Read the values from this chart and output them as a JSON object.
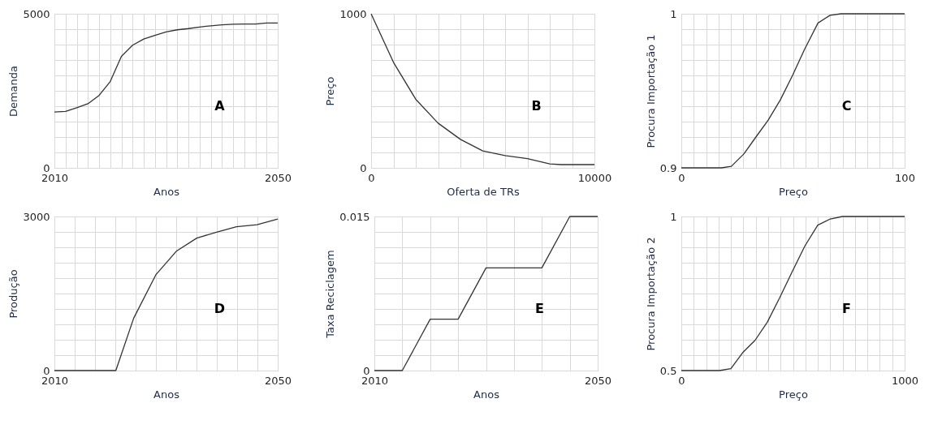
{
  "chart_data": [
    {
      "type": "line",
      "xlabel": "Anos",
      "ylabel": "Demanda",
      "annotations": [
        "A"
      ],
      "grid": true,
      "x": [
        2010,
        2012,
        2014,
        2016,
        2018,
        2020,
        2022,
        2024,
        2026,
        2028,
        2030,
        2032,
        2034,
        2036,
        2038,
        2040,
        2042,
        2044,
        2046,
        2048,
        2050
      ],
      "series": [
        {
          "color": "#333333",
          "values": [
            1810,
            1830,
            1950,
            2080,
            2350,
            2800,
            3620,
            3980,
            4180,
            4300,
            4410,
            4480,
            4520,
            4570,
            4610,
            4640,
            4660,
            4670,
            4670,
            4700,
            4700
          ]
        }
      ],
      "xlim": [
        2010,
        2050
      ],
      "ylim": [
        0,
        5000
      ],
      "xticks": [
        2010,
        {
          "value": 2012,
          "label": null
        },
        {
          "value": 2014,
          "label": null
        },
        {
          "value": 2016,
          "label": null
        },
        {
          "value": 2018,
          "label": null
        },
        {
          "value": 2020,
          "label": null
        },
        {
          "value": 2022,
          "label": null
        },
        {
          "value": 2024,
          "label": null
        },
        {
          "value": 2026,
          "label": null
        },
        {
          "value": 2028,
          "label": null
        },
        {
          "value": 2030,
          "label": null
        },
        {
          "value": 2032,
          "label": null
        },
        {
          "value": 2034,
          "label": null
        },
        {
          "value": 2036,
          "label": null
        },
        {
          "value": 2038,
          "label": null
        },
        {
          "value": 2040,
          "label": null
        },
        {
          "value": 2042,
          "label": null
        },
        {
          "value": 2044,
          "label": null
        },
        {
          "value": 2046,
          "label": null
        },
        {
          "value": 2048,
          "label": null
        },
        2050
      ],
      "yticks": [
        0,
        {
          "value": 500,
          "label": null
        },
        {
          "value": 1000,
          "label": null
        },
        {
          "value": 1500,
          "label": null
        },
        {
          "value": 2000,
          "label": null
        },
        {
          "value": 2500,
          "label": null
        },
        {
          "value": 3000,
          "label": null
        },
        {
          "value": 3500,
          "label": null
        },
        {
          "value": 4000,
          "label": null
        },
        {
          "value": 4500,
          "label": null
        },
        5000
      ]
    },
    {
      "type": "line",
      "xlabel": "Oferta de TRs",
      "ylabel": "Preço",
      "annotations": [
        "B"
      ],
      "grid": true,
      "x": [
        0,
        1000,
        2000,
        3000,
        4000,
        5000,
        6000,
        7000,
        8000,
        8500,
        10000
      ],
      "series": [
        {
          "color": "#333333",
          "values": [
            1000,
            685,
            445,
            290,
            185,
            110,
            80,
            60,
            26,
            21,
            21
          ]
        }
      ],
      "xlim": [
        0,
        10000
      ],
      "ylim": [
        0,
        1000
      ],
      "xticks": [
        0,
        {
          "value": 1000,
          "label": null
        },
        {
          "value": 2000,
          "label": null
        },
        {
          "value": 3000,
          "label": null
        },
        {
          "value": 4000,
          "label": null
        },
        {
          "value": 5000,
          "label": null
        },
        {
          "value": 6000,
          "label": null
        },
        {
          "value": 7000,
          "label": null
        },
        {
          "value": 8000,
          "label": null
        },
        {
          "value": 9000,
          "label": null
        },
        10000
      ],
      "yticks": [
        0,
        {
          "value": 100,
          "label": null
        },
        {
          "value": 200,
          "label": null
        },
        {
          "value": 300,
          "label": null
        },
        {
          "value": 400,
          "label": null
        },
        {
          "value": 500,
          "label": null
        },
        {
          "value": 600,
          "label": null
        },
        {
          "value": 700,
          "label": null
        },
        {
          "value": 800,
          "label": null
        },
        {
          "value": 900,
          "label": null
        },
        1000
      ]
    },
    {
      "type": "line",
      "xlabel": "Preço",
      "ylabel": "Procura Importação 1",
      "annotations": [
        "C"
      ],
      "grid": true,
      "x": [
        0,
        18,
        22.4,
        28,
        33.4,
        38.9,
        44.3,
        49.8,
        55.2,
        61.2,
        66.6,
        71.5,
        100
      ],
      "series": [
        {
          "color": "#333333",
          "values": [
            0.9,
            0.9,
            0.901,
            0.909,
            0.92,
            0.931,
            0.944,
            0.96,
            0.977,
            0.994,
            0.999,
            1,
            1
          ]
        }
      ],
      "xlim": [
        0,
        100
      ],
      "ylim": [
        0.9,
        1
      ],
      "xticks": [
        0,
        {
          "value": 5.6,
          "label": null
        },
        {
          "value": 11.1,
          "label": null
        },
        {
          "value": 16.7,
          "label": null
        },
        {
          "value": 22.2,
          "label": null
        },
        {
          "value": 27.8,
          "label": null
        },
        {
          "value": 33.3,
          "label": null
        },
        {
          "value": 38.9,
          "label": null
        },
        {
          "value": 44.4,
          "label": null
        },
        {
          "value": 50,
          "label": null
        },
        {
          "value": 55.6,
          "label": null
        },
        {
          "value": 61.1,
          "label": null
        },
        {
          "value": 66.7,
          "label": null
        },
        {
          "value": 72.2,
          "label": null
        },
        {
          "value": 77.8,
          "label": null
        },
        {
          "value": 83.3,
          "label": null
        },
        {
          "value": 88.9,
          "label": null
        },
        {
          "value": 94.4,
          "label": null
        },
        100
      ],
      "yticks": [
        0.9,
        {
          "value": 0.91,
          "label": null
        },
        {
          "value": 0.92,
          "label": null
        },
        {
          "value": 0.93,
          "label": null
        },
        {
          "value": 0.94,
          "label": null
        },
        {
          "value": 0.95,
          "label": null
        },
        {
          "value": 0.96,
          "label": null
        },
        {
          "value": 0.97,
          "label": null
        },
        {
          "value": 0.98,
          "label": null
        },
        {
          "value": 0.99,
          "label": null
        },
        1
      ]
    },
    {
      "type": "line",
      "xlabel": "Anos",
      "ylabel": "Produção",
      "annotations": [
        "D"
      ],
      "grid": true,
      "x": [
        2010,
        2021,
        2024.2,
        2028.2,
        2031.9,
        2035.5,
        2038.9,
        2042.6,
        2046.3,
        2050
      ],
      "series": [
        {
          "color": "#333333",
          "values": [
            0,
            0,
            1020,
            1870,
            2330,
            2580,
            2690,
            2800,
            2840,
            2950
          ]
        }
      ],
      "xlim": [
        2010,
        2050
      ],
      "ylim": [
        0,
        3000
      ],
      "xticks": [
        2010,
        {
          "value": 2013.6,
          "label": null
        },
        {
          "value": 2017.3,
          "label": null
        },
        {
          "value": 2020.9,
          "label": null
        },
        {
          "value": 2024.5,
          "label": null
        },
        {
          "value": 2028.2,
          "label": null
        },
        {
          "value": 2031.8,
          "label": null
        },
        {
          "value": 2035.5,
          "label": null
        },
        {
          "value": 2039.1,
          "label": null
        },
        {
          "value": 2042.7,
          "label": null
        },
        {
          "value": 2046.4,
          "label": null
        },
        2050
      ],
      "yticks": [
        0,
        {
          "value": 300,
          "label": null
        },
        {
          "value": 600,
          "label": null
        },
        {
          "value": 900,
          "label": null
        },
        {
          "value": 1200,
          "label": null
        },
        {
          "value": 1500,
          "label": null
        },
        {
          "value": 1800,
          "label": null
        },
        {
          "value": 2100,
          "label": null
        },
        {
          "value": 2400,
          "label": null
        },
        {
          "value": 2700,
          "label": null
        },
        3000
      ]
    },
    {
      "type": "line",
      "xlabel": "Anos",
      "ylabel": "Taxa Reciclagem",
      "annotations": [
        "E"
      ],
      "grid": true,
      "x": [
        2010,
        2015,
        2020,
        2025,
        2030,
        2040,
        2045,
        2050
      ],
      "series": [
        {
          "color": "#333333",
          "values": [
            0,
            0,
            0.005,
            0.005,
            0.01,
            0.01,
            0.015,
            0.015
          ]
        }
      ],
      "xlim": [
        2010,
        2050
      ],
      "ylim": [
        0,
        0.015
      ],
      "xticks": [
        2010,
        {
          "value": 2015,
          "label": null
        },
        {
          "value": 2020,
          "label": null
        },
        {
          "value": 2025,
          "label": null
        },
        {
          "value": 2030,
          "label": null
        },
        {
          "value": 2035,
          "label": null
        },
        {
          "value": 2040,
          "label": null
        },
        {
          "value": 2045,
          "label": null
        },
        2050
      ],
      "yticks": [
        0,
        {
          "value": 0.0015,
          "label": null
        },
        {
          "value": 0.003,
          "label": null
        },
        {
          "value": 0.0045,
          "label": null
        },
        {
          "value": 0.006,
          "label": null
        },
        {
          "value": 0.0075,
          "label": null
        },
        {
          "value": 0.009,
          "label": null
        },
        {
          "value": 0.0105,
          "label": null
        },
        {
          "value": 0.012,
          "label": null
        },
        {
          "value": 0.0135,
          "label": null
        },
        0.015
      ]
    },
    {
      "type": "line",
      "xlabel": "Preço",
      "ylabel": "Procura Importação 2",
      "annotations": [
        "F"
      ],
      "grid": true,
      "x": [
        0,
        171,
        222,
        277,
        330,
        385,
        439,
        494,
        553,
        611,
        667,
        721,
        1000
      ],
      "series": [
        {
          "color": "#333333",
          "values": [
            0.5,
            0.5,
            0.506,
            0.56,
            0.598,
            0.657,
            0.734,
            0.817,
            0.904,
            0.972,
            0.992,
            1,
            1
          ]
        }
      ],
      "xlim": [
        0,
        1000
      ],
      "ylim": [
        0.5,
        1
      ],
      "xticks": [
        0,
        {
          "value": 55.6,
          "label": null
        },
        {
          "value": 111.1,
          "label": null
        },
        {
          "value": 166.7,
          "label": null
        },
        {
          "value": 222.2,
          "label": null
        },
        {
          "value": 277.8,
          "label": null
        },
        {
          "value": 333.3,
          "label": null
        },
        {
          "value": 388.9,
          "label": null
        },
        {
          "value": 444.4,
          "label": null
        },
        {
          "value": 500,
          "label": null
        },
        {
          "value": 555.6,
          "label": null
        },
        {
          "value": 611.1,
          "label": null
        },
        {
          "value": 666.7,
          "label": null
        },
        {
          "value": 722.2,
          "label": null
        },
        {
          "value": 777.8,
          "label": null
        },
        {
          "value": 833.3,
          "label": null
        },
        {
          "value": 888.9,
          "label": null
        },
        {
          "value": 944.4,
          "label": null
        },
        1000
      ],
      "yticks": [
        0.5,
        {
          "value": 0.55,
          "label": null
        },
        {
          "value": 0.6,
          "label": null
        },
        {
          "value": 0.65,
          "label": null
        },
        {
          "value": 0.7,
          "label": null
        },
        {
          "value": 0.75,
          "label": null
        },
        {
          "value": 0.8,
          "label": null
        },
        {
          "value": 0.85,
          "label": null
        },
        {
          "value": 0.9,
          "label": null
        },
        {
          "value": 0.95,
          "label": null
        },
        1
      ]
    }
  ]
}
